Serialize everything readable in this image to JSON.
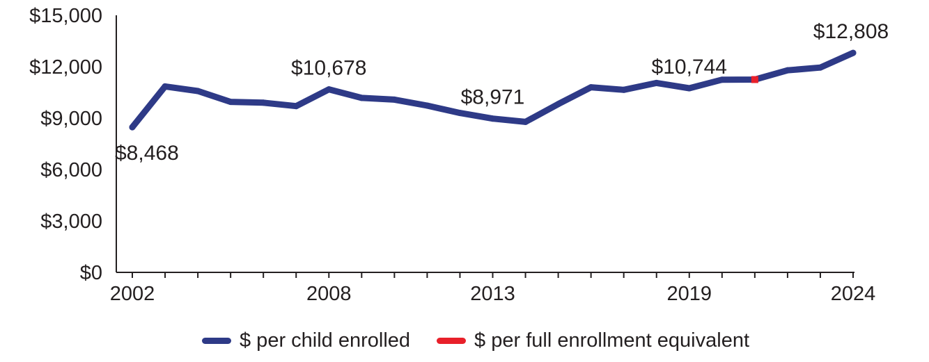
{
  "chart_data": {
    "type": "line",
    "title": "",
    "xlabel": "",
    "ylabel": "",
    "ylim": [
      0,
      15000
    ],
    "yticks": [
      0,
      3000,
      6000,
      9000,
      12000,
      15000
    ],
    "ytick_labels": [
      "$0",
      "$3,000",
      "$6,000",
      "$9,000",
      "$12,000",
      "$15,000"
    ],
    "xlim": [
      2002,
      2024
    ],
    "xtick_labels": [
      {
        "x": 2002,
        "label": "2002"
      },
      {
        "x": 2008,
        "label": "2008"
      },
      {
        "x": 2013,
        "label": "2013"
      },
      {
        "x": 2019,
        "label": "2019"
      },
      {
        "x": 2024,
        "label": "2024"
      }
    ],
    "grid": false,
    "legend_placement": "bottom",
    "series": [
      {
        "name": "$ per child enrolled",
        "color": "#2e3a87",
        "x": [
          2002,
          2003,
          2004,
          2005,
          2006,
          2007,
          2008,
          2009,
          2010,
          2011,
          2012,
          2013,
          2014,
          2015,
          2016,
          2017,
          2018,
          2019,
          2020,
          2021,
          2022,
          2023,
          2024
        ],
        "values": [
          8468,
          10850,
          10580,
          9950,
          9900,
          9700,
          10678,
          10180,
          10080,
          9730,
          9300,
          8971,
          8780,
          9820,
          10800,
          10650,
          11050,
          10744,
          11240,
          11250,
          11790,
          11950,
          12808
        ]
      },
      {
        "name": "$ per full enrollment equivalent",
        "color": "#e8202a",
        "x": [
          2021
        ],
        "values": [
          11250
        ]
      }
    ],
    "annotations": [
      {
        "x": 2002,
        "value": 8468,
        "label": "$8,468",
        "position": "below"
      },
      {
        "x": 2008,
        "value": 10678,
        "label": "$10,678",
        "position": "above"
      },
      {
        "x": 2013,
        "value": 8971,
        "label": "$8,971",
        "position": "above"
      },
      {
        "x": 2019,
        "value": 10744,
        "label": "$10,744",
        "position": "above"
      },
      {
        "x": 2024,
        "value": 12808,
        "label": "$12,808",
        "position": "above"
      }
    ]
  }
}
